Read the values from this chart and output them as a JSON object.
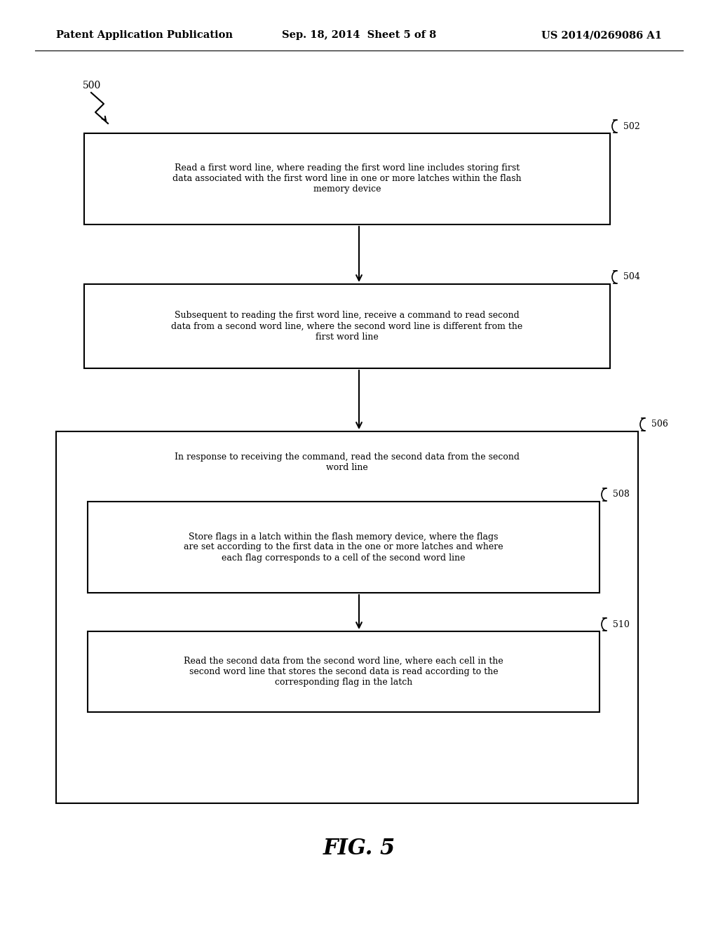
{
  "header_left": "Patent Application Publication",
  "header_center": "Sep. 18, 2014  Sheet 5 of 8",
  "header_right": "US 2014/0269086 A1",
  "figure_label": "FIG. 5",
  "start_label": "500",
  "box502_text": "Read a first word line, where reading the first word line includes storing first\ndata associated with the first word line in one or more latches within the flash\nmemory device",
  "box504_text": "Subsequent to reading the first word line, receive a command to read second\ndata from a second word line, where the second word line is different from the\nfirst word line",
  "box506_text": "In response to receiving the command, read the second data from the second\nword line",
  "box508_text": "Store flags in a latch within the flash memory device, where the flags\nare set according to the first data in the one or more latches and where\neach flag corresponds to a cell of the second word line",
  "box510_text": "Read the second data from the second word line, where each cell in the\nsecond word line that stores the second data is read according to the\ncorresponding flag in the latch",
  "background_color": "#ffffff",
  "box_edge_color": "#000000",
  "text_color": "#000000",
  "font_size": 9.0,
  "header_font_size": 10.5
}
